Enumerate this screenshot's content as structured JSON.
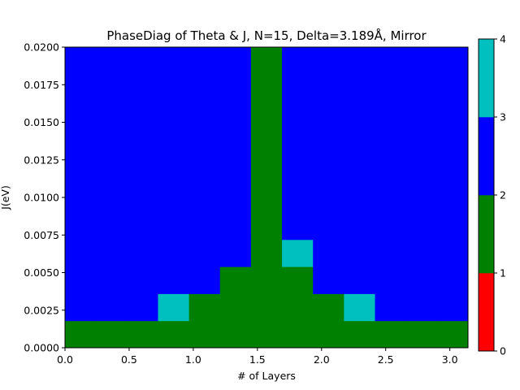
{
  "chart_data": {
    "type": "heatmap",
    "title": "PhaseDiag of Theta & J, N=15, Delta=3.189Å, Mirror",
    "xlabel": "# of Layers",
    "ylabel": "J(eV)",
    "xlim": [
      0,
      3.1416
    ],
    "ylim": [
      0,
      0.02
    ],
    "x_ticks": [
      "0.0",
      "0.5",
      "1.0",
      "1.5",
      "2.0",
      "2.5",
      "3.0"
    ],
    "y_ticks": [
      "0.0000",
      "0.0025",
      "0.0050",
      "0.0075",
      "0.0100",
      "0.0125",
      "0.0150",
      "0.0175",
      "0.0200"
    ],
    "x_edges": [
      0,
      0.2513,
      0.5027,
      0.754,
      1.0053,
      1.2566,
      1.508,
      1.7593,
      2.0106,
      2.2619,
      2.5133,
      2.7646,
      3.0159,
      3.1416
    ],
    "x_edges_note_removed": true,
    "columns_x": [
      0,
      0.2416,
      0.4833,
      0.7249,
      0.9666,
      1.2082,
      1.4499,
      1.6915,
      1.9332,
      2.1748,
      2.4165,
      2.6581,
      2.8998,
      3.1416
    ],
    "y_edges": [
      0,
      0.0018,
      0.0036,
      0.0054,
      0.0072,
      0.02
    ],
    "grid": [
      [
        1,
        1,
        1,
        1,
        1,
        1,
        1,
        1,
        1,
        1,
        1,
        1,
        1
      ],
      [
        2,
        2,
        2,
        3,
        1,
        1,
        1,
        1,
        1,
        3,
        2,
        2,
        2
      ],
      [
        2,
        2,
        2,
        2,
        2,
        1,
        1,
        1,
        2,
        2,
        2,
        2,
        2
      ],
      [
        2,
        2,
        2,
        2,
        2,
        2,
        1,
        3,
        2,
        2,
        2,
        2,
        2
      ],
      [
        2,
        2,
        2,
        2,
        2,
        2,
        1,
        2,
        2,
        2,
        2,
        2,
        2
      ]
    ],
    "colorbar": {
      "range": [
        0,
        4
      ],
      "ticks": [
        "0",
        "1",
        "2",
        "3",
        "4"
      ],
      "colors": [
        "#ff0000",
        "#008000",
        "#0000ff",
        "#00bfbf"
      ]
    },
    "grid_on": false,
    "legend": "none"
  }
}
